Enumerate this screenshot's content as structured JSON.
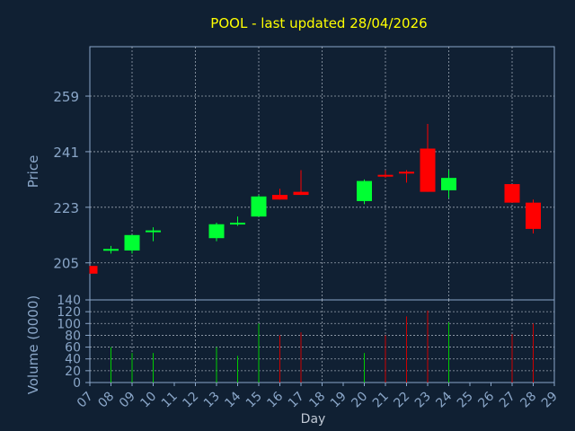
{
  "title": "POOL - last updated 28/04/2026",
  "colors": {
    "background": "#102033",
    "axis": "#8aa6c8",
    "grid": "#c8d0dc",
    "title": "#ffff00",
    "up": "#00ff33",
    "down": "#ff0000",
    "vol_up": "#00cc00",
    "vol_down": "#cc0000"
  },
  "chart_data": [
    {
      "type": "candlestick",
      "title": "POOL - last updated 28/04/2026",
      "ylabel": "Price",
      "ylim": [
        193,
        275
      ],
      "yticks": [
        205,
        223,
        241,
        259
      ],
      "xlim": [
        7,
        29
      ],
      "grid": true,
      "candles": [
        {
          "day": 7,
          "open": 204,
          "high": 204,
          "low": 201.5,
          "close": 201.5
        },
        {
          "day": 8,
          "open": 209,
          "high": 210.5,
          "low": 208,
          "close": 209.5
        },
        {
          "day": 9,
          "open": 209,
          "high": 214,
          "low": 208,
          "close": 214
        },
        {
          "day": 10,
          "open": 215,
          "high": 216.5,
          "low": 212,
          "close": 215.5
        },
        {
          "day": 13,
          "open": 213,
          "high": 218,
          "low": 212,
          "close": 217.5
        },
        {
          "day": 14,
          "open": 217.5,
          "high": 220,
          "low": 217,
          "close": 218
        },
        {
          "day": 15,
          "open": 220,
          "high": 227,
          "low": 220,
          "close": 226.5
        },
        {
          "day": 16,
          "open": 227,
          "high": 229,
          "low": 225.5,
          "close": 225.5
        },
        {
          "day": 17,
          "open": 228,
          "high": 235,
          "low": 227,
          "close": 227
        },
        {
          "day": 20,
          "open": 225,
          "high": 232,
          "low": 224,
          "close": 231.5
        },
        {
          "day": 21,
          "open": 233.5,
          "high": 235,
          "low": 232.5,
          "close": 233
        },
        {
          "day": 22,
          "open": 234.5,
          "high": 235,
          "low": 231,
          "close": 234
        },
        {
          "day": 23,
          "open": 242,
          "high": 250,
          "low": 228,
          "close": 228
        },
        {
          "day": 24,
          "open": 228.5,
          "high": 235,
          "low": 226,
          "close": 232.5
        },
        {
          "day": 27,
          "open": 230.5,
          "high": 230.5,
          "low": 224.5,
          "close": 224.5
        },
        {
          "day": 28,
          "open": 224.5,
          "high": 225.5,
          "low": 214.5,
          "close": 216
        }
      ]
    },
    {
      "type": "bar",
      "ylabel": "Volume (0000)",
      "xlabel": "Day",
      "ylim": [
        0,
        140
      ],
      "yticks": [
        0,
        20,
        40,
        60,
        80,
        100,
        120,
        140
      ],
      "xticks": [
        "07",
        "08",
        "09",
        "10",
        "11",
        "12",
        "13",
        "14",
        "15",
        "16",
        "17",
        "18",
        "19",
        "20",
        "21",
        "22",
        "23",
        "24",
        "25",
        "26",
        "27",
        "28",
        "29"
      ],
      "bars": [
        {
          "day": 8,
          "value": 60,
          "dir": "up"
        },
        {
          "day": 9,
          "value": 50,
          "dir": "up"
        },
        {
          "day": 10,
          "value": 50,
          "dir": "up"
        },
        {
          "day": 13,
          "value": 60,
          "dir": "up"
        },
        {
          "day": 14,
          "value": 45,
          "dir": "up"
        },
        {
          "day": 15,
          "value": 100,
          "dir": "up"
        },
        {
          "day": 16,
          "value": 80,
          "dir": "down"
        },
        {
          "day": 17,
          "value": 85,
          "dir": "down"
        },
        {
          "day": 20,
          "value": 50,
          "dir": "up"
        },
        {
          "day": 21,
          "value": 80,
          "dir": "down"
        },
        {
          "day": 22,
          "value": 112,
          "dir": "down"
        },
        {
          "day": 23,
          "value": 122,
          "dir": "down"
        },
        {
          "day": 24,
          "value": 102,
          "dir": "up"
        },
        {
          "day": 27,
          "value": 82,
          "dir": "down"
        },
        {
          "day": 28,
          "value": 100,
          "dir": "down"
        }
      ]
    }
  ]
}
